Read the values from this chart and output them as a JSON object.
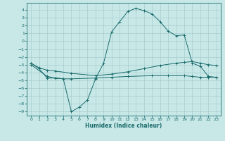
{
  "title": "",
  "xlabel": "Humidex (Indice chaleur)",
  "background_color": "#c8e8e8",
  "grid_color": "#a8cccc",
  "line_color": "#1a6b6b",
  "xlim": [
    -0.5,
    23.5
  ],
  "ylim": [
    -9.5,
    4.9
  ],
  "xticks": [
    0,
    1,
    2,
    3,
    4,
    5,
    6,
    7,
    8,
    9,
    10,
    11,
    12,
    13,
    14,
    15,
    16,
    17,
    18,
    19,
    20,
    21,
    22,
    23
  ],
  "yticks": [
    4,
    3,
    2,
    1,
    0,
    -1,
    -2,
    -3,
    -4,
    -5,
    -6,
    -7,
    -8,
    -9
  ],
  "curve_x": [
    0,
    1,
    2,
    3,
    4,
    5,
    6,
    7,
    8,
    9,
    10,
    11,
    12,
    13,
    14,
    15,
    16,
    17,
    18,
    19,
    20,
    21,
    22,
    23
  ],
  "curve_y": [
    -2.8,
    -3.5,
    -4.7,
    -4.7,
    -4.8,
    -9.0,
    -8.4,
    -7.5,
    -4.8,
    -2.8,
    1.2,
    2.5,
    3.8,
    4.2,
    3.9,
    3.5,
    2.5,
    1.3,
    0.7,
    0.8,
    -2.8,
    -3.2,
    -4.5,
    -4.6
  ],
  "line_upper_x": [
    0,
    1,
    2,
    3,
    5,
    8,
    10,
    12,
    14,
    16,
    18,
    19,
    20,
    21,
    22,
    23
  ],
  "line_upper_y": [
    -2.8,
    -3.4,
    -3.7,
    -3.8,
    -4.1,
    -4.4,
    -4.2,
    -3.9,
    -3.5,
    -3.1,
    -2.8,
    -2.7,
    -2.6,
    -2.8,
    -3.0,
    -3.1
  ],
  "line_lower_x": [
    0,
    2,
    3,
    4,
    5,
    8,
    10,
    12,
    15,
    17,
    19,
    20,
    21,
    22,
    23
  ],
  "line_lower_y": [
    -3.0,
    -4.5,
    -4.7,
    -4.8,
    -4.8,
    -4.7,
    -4.6,
    -4.5,
    -4.4,
    -4.4,
    -4.4,
    -4.5,
    -4.6,
    -4.6,
    -4.6
  ]
}
